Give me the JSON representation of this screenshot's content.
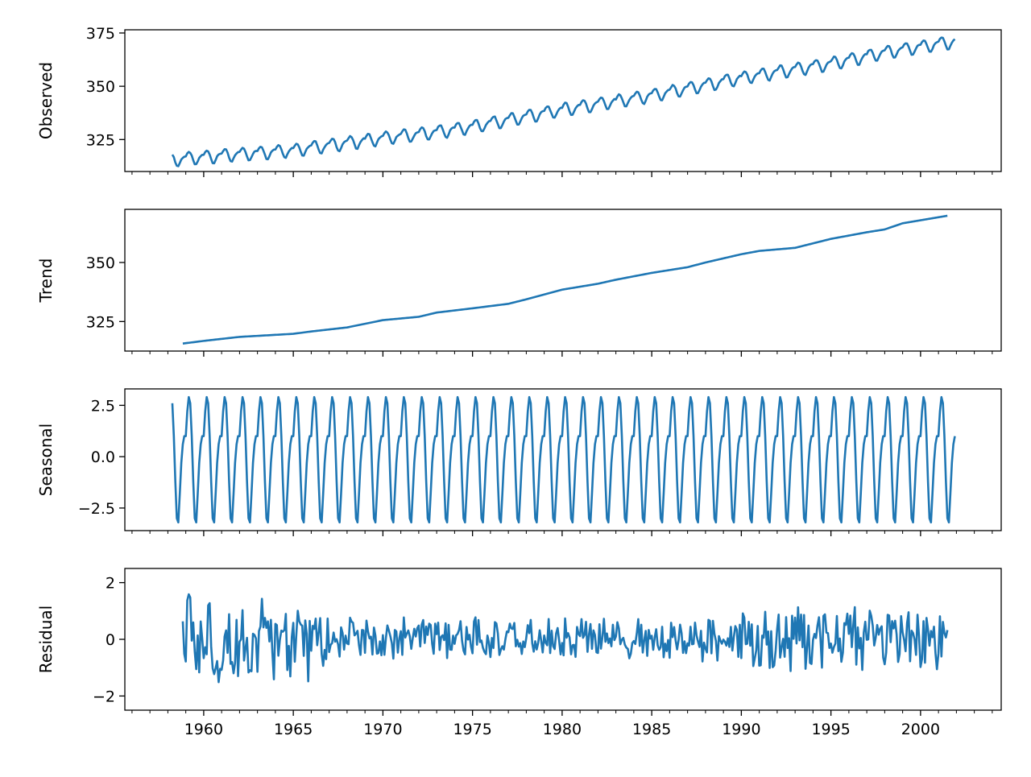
{
  "chart_data": {
    "type": "line",
    "layout": "4 vertically stacked panels sharing the x axis",
    "line_color": "#1f77b4",
    "grid": false,
    "x_start": 1958.25,
    "x_end": 2001.917,
    "x_step": 0.08333,
    "xlim": [
      1955.6,
      2004.5
    ],
    "x_ticks": [
      1960,
      1965,
      1970,
      1975,
      1980,
      1985,
      1990,
      1995,
      2000
    ],
    "x_tick_labels": [
      "1960",
      "1965",
      "1970",
      "1975",
      "1980",
      "1985",
      "1990",
      "1995",
      "2000"
    ],
    "panels": [
      {
        "name": "observed",
        "ylabel": "Observed",
        "ylim": [
          310,
          376.5
        ],
        "y_ticks": [
          325,
          350,
          375
        ],
        "y_tick_labels": [
          "325",
          "350",
          "375"
        ],
        "trend_anchors": {
          "x": [
            1958.25,
            1960,
            1965,
            1970,
            1973,
            1975,
            1980,
            1985,
            1990,
            1995,
            1998,
            2001.917
          ],
          "y": [
            315.5,
            316.8,
            320,
            325.6,
            328.5,
            331,
            339,
            345.6,
            353.9,
            360.6,
            365.8,
            371.0
          ]
        },
        "seasonal_amplitude": 3.0
      },
      {
        "name": "trend",
        "ylabel": "Trend",
        "ylim": [
          312.5,
          372.5
        ],
        "y_ticks": [
          325,
          350
        ],
        "y_tick_labels": [
          "325",
          "350"
        ],
        "x": [
          1958.75,
          1960,
          1962,
          1965,
          1966,
          1968,
          1970,
          1972,
          1973,
          1975,
          1977,
          1978,
          1980,
          1982,
          1983,
          1985,
          1987,
          1988,
          1990,
          1991,
          1993,
          1995,
          1997,
          1998,
          1999,
          2001.5
        ],
        "y": [
          315.6,
          316.8,
          318.5,
          319.8,
          320.8,
          322.5,
          325.6,
          327.0,
          328.8,
          330.6,
          332.5,
          334.4,
          338.5,
          341.0,
          342.7,
          345.6,
          348.0,
          350.0,
          353.5,
          354.9,
          356.2,
          360.0,
          362.8,
          364.0,
          366.6,
          369.8
        ]
      },
      {
        "name": "seasonal",
        "ylabel": "Seasonal",
        "ylim": [
          -3.6,
          3.3
        ],
        "y_ticks": [
          2.5,
          0.0,
          -2.5
        ],
        "y_tick_labels": [
          "2.5",
          "0.0",
          "−2.5"
        ],
        "monthly_pattern": [
          1.0,
          2.2,
          2.9,
          2.6,
          1.0,
          -1.2,
          -3.0,
          -3.2,
          -1.8,
          -0.3,
          0.6,
          1.0
        ]
      },
      {
        "name": "residual",
        "ylabel": "Residual",
        "ylim": [
          -2.5,
          2.5
        ],
        "y_ticks": [
          2,
          0,
          -2
        ],
        "y_tick_labels": [
          "2",
          "0",
          "−2"
        ],
        "noise_amplitude": 1.0
      }
    ]
  }
}
